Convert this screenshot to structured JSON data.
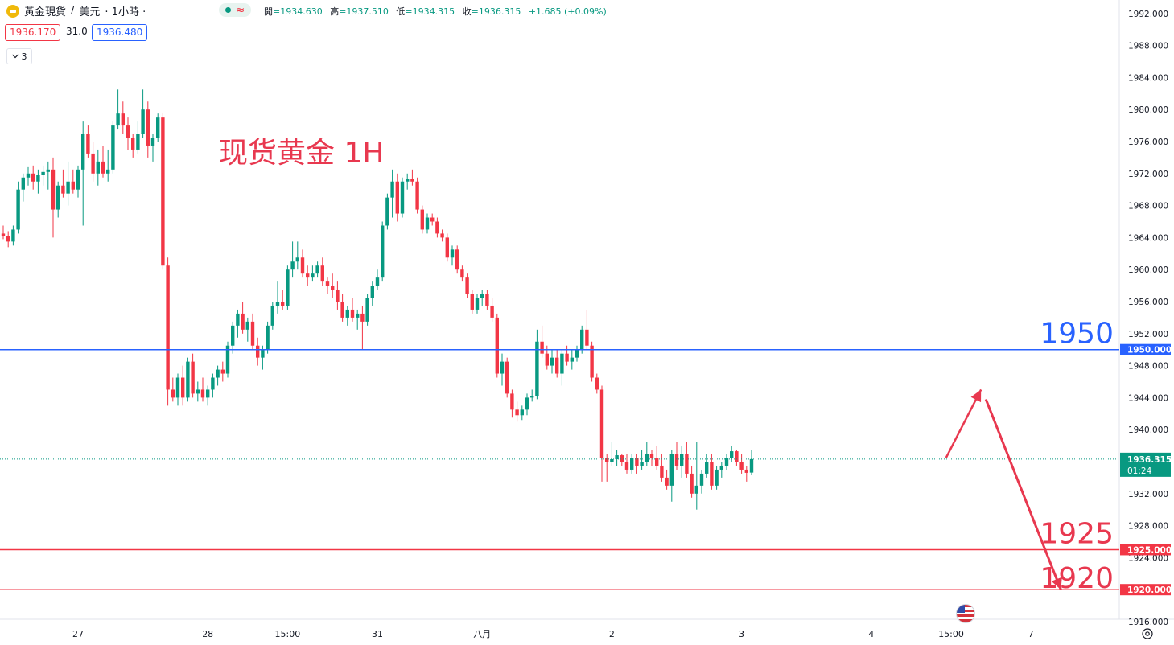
{
  "header": {
    "symbol": "黃金現貨",
    "separator": "/",
    "currency": "美元",
    "interval": "· 1小時 ·",
    "ohlc": [
      {
        "label": "開",
        "value": "=1934.630"
      },
      {
        "label": "高",
        "value": "=1937.510"
      },
      {
        "label": "低",
        "value": "=1934.315"
      },
      {
        "label": "收",
        "value": "=1936.315"
      },
      {
        "label": "",
        "value": "+1.685 (+0.09%)"
      }
    ],
    "sell_price": "1936.170",
    "spread": "31.0",
    "buy_price": "1936.480",
    "collapse_count": "3",
    "collapse_icon": "chevron-down-icon"
  },
  "icons": {
    "symbol": "gold-icon",
    "status": "market-open-icon",
    "flag": "us-flag-icon",
    "settings": "gear-icon"
  },
  "colors": {
    "up": "#089981",
    "down": "#f23645",
    "hline_blue": "#2962ff",
    "hline_red": "#f23645",
    "annotation_red": "#e8384f",
    "annotation_blue": "#2962ff"
  },
  "chart_data": {
    "type": "candlestick",
    "ylim": [
      1916,
      1994
    ],
    "price_axis_ticks": [
      "1916.000",
      "1920.000",
      "1924.000",
      "1928.000",
      "1932.000",
      "1936.000",
      "1940.000",
      "1944.000",
      "1948.000",
      "1952.000",
      "1956.000",
      "1960.000",
      "1964.000",
      "1968.000",
      "1972.000",
      "1976.000",
      "1980.000",
      "1984.000",
      "1988.000",
      "1992.000"
    ],
    "time_axis_labels": [
      {
        "label": "27",
        "bar": 15
      },
      {
        "label": "28",
        "bar": 41
      },
      {
        "label": "15:00",
        "bar": 57
      },
      {
        "label": "31",
        "bar": 75
      },
      {
        "label": "八月",
        "bar": 96
      },
      {
        "label": "2",
        "bar": 122
      },
      {
        "label": "3",
        "bar": 148
      },
      {
        "label": "4",
        "bar": 174
      },
      {
        "label": "15:00",
        "bar": 190
      },
      {
        "label": "7",
        "bar": 206
      }
    ],
    "title_annotation": "现货黄金 1H",
    "horizontal_lines": [
      {
        "value": 1950.0,
        "label": "1950.000",
        "annotation": "1950",
        "color": "blue"
      },
      {
        "value": 1925.0,
        "label": "1925.000",
        "annotation": "1925",
        "color": "red"
      },
      {
        "value": 1920.0,
        "label": "1920.000",
        "annotation": "1920",
        "color": "red"
      }
    ],
    "last_price": {
      "value": 1936.315,
      "label": "1936.315",
      "countdown": "01:24"
    },
    "projection_path": [
      [
        189,
        1936.5
      ],
      [
        196,
        1945
      ],
      [
        212,
        1920
      ]
    ],
    "ohlc": [
      [
        1964.5,
        1965.5,
        1963.8,
        1964.2
      ],
      [
        1964.2,
        1964.8,
        1962.8,
        1963.5
      ],
      [
        1963.5,
        1965.5,
        1963.0,
        1965.0
      ],
      [
        1965.0,
        1971.0,
        1964.5,
        1970.0
      ],
      [
        1970.0,
        1972.0,
        1968.5,
        1971.5
      ],
      [
        1971.5,
        1972.8,
        1970.5,
        1972.0
      ],
      [
        1972.0,
        1973.0,
        1970.0,
        1971.0
      ],
      [
        1971.0,
        1972.5,
        1969.5,
        1971.8
      ],
      [
        1971.8,
        1973.0,
        1970.5,
        1972.2
      ],
      [
        1972.2,
        1973.5,
        1970.0,
        1972.5
      ],
      [
        1972.5,
        1974.0,
        1964.0,
        1967.5
      ],
      [
        1967.5,
        1971.0,
        1966.5,
        1970.5
      ],
      [
        1970.5,
        1972.5,
        1969.0,
        1969.5
      ],
      [
        1969.5,
        1973.5,
        1968.0,
        1971.0
      ],
      [
        1971.0,
        1972.5,
        1969.5,
        1970.0
      ],
      [
        1970.0,
        1973.0,
        1969.0,
        1972.5
      ],
      [
        1972.5,
        1978.5,
        1965.5,
        1977.0
      ],
      [
        1977.0,
        1978.0,
        1974.0,
        1974.5
      ],
      [
        1974.5,
        1976.0,
        1971.0,
        1972.0
      ],
      [
        1972.0,
        1975.0,
        1970.5,
        1973.5
      ],
      [
        1973.5,
        1975.5,
        1971.5,
        1972.0
      ],
      [
        1972.0,
        1975.0,
        1971.0,
        1972.5
      ],
      [
        1972.5,
        1978.5,
        1972.0,
        1978.0
      ],
      [
        1978.0,
        1982.5,
        1977.5,
        1979.5
      ],
      [
        1979.5,
        1981.0,
        1977.0,
        1978.0
      ],
      [
        1978.0,
        1979.0,
        1975.0,
        1976.5
      ],
      [
        1976.5,
        1977.0,
        1974.0,
        1975.0
      ],
      [
        1975.0,
        1978.5,
        1974.5,
        1977.0
      ],
      [
        1977.0,
        1982.5,
        1976.5,
        1980.0
      ],
      [
        1980.0,
        1981.0,
        1974.0,
        1975.5
      ],
      [
        1975.5,
        1977.0,
        1973.5,
        1976.5
      ],
      [
        1976.5,
        1979.5,
        1976.0,
        1979.0
      ],
      [
        1979.0,
        1979.5,
        1960.0,
        1960.5
      ],
      [
        1960.5,
        1961.5,
        1943.0,
        1945.0
      ],
      [
        1945.0,
        1946.5,
        1943.5,
        1944.0
      ],
      [
        1944.0,
        1947.0,
        1943.0,
        1946.5
      ],
      [
        1946.5,
        1948.0,
        1943.0,
        1944.0
      ],
      [
        1944.0,
        1949.0,
        1943.5,
        1948.5
      ],
      [
        1948.5,
        1949.5,
        1944.0,
        1944.5
      ],
      [
        1944.5,
        1946.0,
        1943.5,
        1945.0
      ],
      [
        1945.0,
        1946.5,
        1943.5,
        1944.0
      ],
      [
        1944.0,
        1945.5,
        1943.0,
        1945.0
      ],
      [
        1945.0,
        1947.0,
        1944.0,
        1946.5
      ],
      [
        1946.5,
        1948.0,
        1945.5,
        1947.5
      ],
      [
        1947.5,
        1948.5,
        1946.0,
        1947.0
      ],
      [
        1947.0,
        1951.0,
        1946.5,
        1950.5
      ],
      [
        1950.5,
        1953.5,
        1949.5,
        1953.0
      ],
      [
        1953.0,
        1955.0,
        1951.5,
        1954.5
      ],
      [
        1954.5,
        1956.0,
        1952.0,
        1952.5
      ],
      [
        1952.5,
        1954.0,
        1951.0,
        1953.5
      ],
      [
        1953.5,
        1954.5,
        1950.0,
        1950.5
      ],
      [
        1950.5,
        1951.5,
        1948.0,
        1949.0
      ],
      [
        1949.0,
        1950.5,
        1947.5,
        1950.0
      ],
      [
        1950.0,
        1953.5,
        1949.5,
        1953.0
      ],
      [
        1953.0,
        1956.0,
        1952.5,
        1955.5
      ],
      [
        1955.5,
        1958.5,
        1954.5,
        1956.0
      ],
      [
        1956.0,
        1957.5,
        1955.0,
        1955.5
      ],
      [
        1955.5,
        1960.5,
        1955.0,
        1960.0
      ],
      [
        1960.0,
        1963.5,
        1959.0,
        1961.0
      ],
      [
        1961.0,
        1963.5,
        1960.0,
        1961.5
      ],
      [
        1961.5,
        1962.5,
        1959.0,
        1959.5
      ],
      [
        1959.5,
        1960.5,
        1958.0,
        1959.0
      ],
      [
        1959.0,
        1960.5,
        1958.5,
        1959.5
      ],
      [
        1959.5,
        1961.0,
        1959.0,
        1960.5
      ],
      [
        1960.5,
        1961.5,
        1958.0,
        1958.5
      ],
      [
        1958.5,
        1959.0,
        1957.0,
        1958.0
      ],
      [
        1958.0,
        1959.5,
        1956.5,
        1957.5
      ],
      [
        1957.5,
        1958.5,
        1955.0,
        1956.0
      ],
      [
        1956.0,
        1957.0,
        1953.5,
        1954.0
      ],
      [
        1954.0,
        1955.5,
        1953.0,
        1955.0
      ],
      [
        1955.0,
        1956.5,
        1953.5,
        1954.0
      ],
      [
        1954.0,
        1955.0,
        1952.5,
        1954.5
      ],
      [
        1954.5,
        1955.5,
        1950.0,
        1953.5
      ],
      [
        1953.5,
        1957.0,
        1953.0,
        1956.5
      ],
      [
        1956.5,
        1958.5,
        1955.5,
        1958.0
      ],
      [
        1958.0,
        1960.0,
        1957.5,
        1959.0
      ],
      [
        1959.0,
        1966.0,
        1958.5,
        1965.5
      ],
      [
        1965.5,
        1969.5,
        1965.0,
        1969.0
      ],
      [
        1969.0,
        1972.5,
        1966.5,
        1971.0
      ],
      [
        1971.0,
        1972.0,
        1966.0,
        1967.0
      ],
      [
        1967.0,
        1971.5,
        1966.5,
        1971.0
      ],
      [
        1971.0,
        1972.0,
        1970.0,
        1971.3
      ],
      [
        1971.3,
        1972.5,
        1970.5,
        1971.0
      ],
      [
        1971.0,
        1971.5,
        1967.0,
        1967.5
      ],
      [
        1967.5,
        1968.0,
        1964.5,
        1965.0
      ],
      [
        1965.0,
        1967.0,
        1964.5,
        1966.5
      ],
      [
        1966.5,
        1967.0,
        1965.5,
        1966.0
      ],
      [
        1966.0,
        1966.5,
        1964.0,
        1964.5
      ],
      [
        1964.5,
        1965.0,
        1963.5,
        1964.0
      ],
      [
        1964.0,
        1964.5,
        1961.0,
        1961.5
      ],
      [
        1961.5,
        1963.0,
        1960.5,
        1962.5
      ],
      [
        1962.5,
        1963.0,
        1959.5,
        1960.0
      ],
      [
        1960.0,
        1960.5,
        1958.5,
        1959.0
      ],
      [
        1959.0,
        1959.5,
        1956.5,
        1957.0
      ],
      [
        1957.0,
        1957.5,
        1954.5,
        1955.0
      ],
      [
        1955.0,
        1957.0,
        1954.5,
        1956.5
      ],
      [
        1956.5,
        1957.5,
        1955.5,
        1957.0
      ],
      [
        1957.0,
        1957.5,
        1955.0,
        1955.5
      ],
      [
        1955.5,
        1956.5,
        1953.5,
        1954.0
      ],
      [
        1954.0,
        1954.5,
        1946.5,
        1947.0
      ],
      [
        1947.0,
        1949.5,
        1945.5,
        1948.5
      ],
      [
        1948.5,
        1949.0,
        1944.0,
        1944.5
      ],
      [
        1944.5,
        1945.0,
        1941.5,
        1942.5
      ],
      [
        1942.5,
        1943.5,
        1941.0,
        1941.8
      ],
      [
        1941.8,
        1943.0,
        1941.2,
        1942.5
      ],
      [
        1942.5,
        1944.5,
        1941.8,
        1944.0
      ],
      [
        1944.0,
        1945.0,
        1943.5,
        1944.2
      ],
      [
        1944.2,
        1952.5,
        1943.8,
        1951.0
      ],
      [
        1951.0,
        1953.0,
        1949.0,
        1949.5
      ],
      [
        1949.5,
        1950.5,
        1947.5,
        1948.0
      ],
      [
        1948.0,
        1950.0,
        1947.0,
        1949.0
      ],
      [
        1949.0,
        1950.0,
        1946.5,
        1947.0
      ],
      [
        1947.0,
        1950.0,
        1945.5,
        1949.5
      ],
      [
        1949.5,
        1950.5,
        1948.0,
        1948.5
      ],
      [
        1948.5,
        1950.0,
        1947.5,
        1949.0
      ],
      [
        1949.0,
        1950.5,
        1948.5,
        1950.0
      ],
      [
        1950.0,
        1953.0,
        1949.5,
        1952.5
      ],
      [
        1952.5,
        1955.0,
        1950.0,
        1950.5
      ],
      [
        1950.5,
        1951.0,
        1946.0,
        1946.5
      ],
      [
        1946.5,
        1947.0,
        1944.5,
        1945.0
      ],
      [
        1945.0,
        1945.5,
        1933.5,
        1936.5
      ],
      [
        1936.5,
        1937.0,
        1933.5,
        1936.0
      ],
      [
        1936.0,
        1938.5,
        1935.5,
        1936.3
      ],
      [
        1936.3,
        1937.5,
        1935.5,
        1936.8
      ],
      [
        1936.8,
        1937.0,
        1935.5,
        1936.0
      ],
      [
        1936.0,
        1937.0,
        1934.5,
        1935.0
      ],
      [
        1935.0,
        1937.0,
        1934.5,
        1936.5
      ],
      [
        1936.5,
        1937.0,
        1934.5,
        1935.5
      ],
      [
        1935.5,
        1937.5,
        1935.0,
        1936.0
      ],
      [
        1936.0,
        1938.5,
        1935.5,
        1937.0
      ],
      [
        1937.0,
        1937.5,
        1935.5,
        1936.5
      ],
      [
        1936.5,
        1938.0,
        1935.0,
        1935.5
      ],
      [
        1935.5,
        1937.0,
        1933.5,
        1934.0
      ],
      [
        1934.0,
        1935.0,
        1932.5,
        1933.0
      ],
      [
        1933.0,
        1937.5,
        1931.0,
        1937.0
      ],
      [
        1937.0,
        1938.5,
        1935.0,
        1935.5
      ],
      [
        1935.5,
        1938.0,
        1934.0,
        1937.0
      ],
      [
        1937.0,
        1938.5,
        1934.0,
        1934.5
      ],
      [
        1934.5,
        1935.5,
        1931.5,
        1932.0
      ],
      [
        1932.0,
        1938.5,
        1930.0,
        1933.0
      ],
      [
        1933.0,
        1935.0,
        1932.0,
        1934.5
      ],
      [
        1934.5,
        1937.0,
        1934.0,
        1936.0
      ],
      [
        1936.0,
        1937.0,
        1932.5,
        1933.0
      ],
      [
        1933.0,
        1935.5,
        1932.5,
        1935.0
      ],
      [
        1935.0,
        1936.0,
        1934.0,
        1935.5
      ],
      [
        1935.5,
        1937.0,
        1935.0,
        1936.5
      ],
      [
        1936.5,
        1938.0,
        1936.0,
        1937.3
      ],
      [
        1937.3,
        1937.5,
        1935.5,
        1936.0
      ],
      [
        1936.0,
        1937.0,
        1934.5,
        1935.0
      ],
      [
        1935.0,
        1935.5,
        1933.5,
        1934.6
      ],
      [
        1934.63,
        1937.51,
        1934.315,
        1936.315
      ]
    ]
  }
}
